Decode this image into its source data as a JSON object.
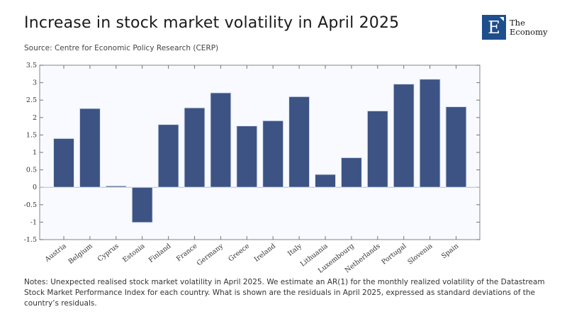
{
  "header": {
    "title": "Increase in stock market volatility in April 2025",
    "source": "Source: Centre for Economic Policy Research (CERP)"
  },
  "logo": {
    "letter": "E",
    "line1": "The",
    "line2": "Economy",
    "color": "#1f4e8c"
  },
  "notes": "Notes: Unexpected realised stock market volatility in April 2025. We estimate an AR(1) for the monthly realized volatility of the Datastream Stock Market Performance Index for each country. What is shown are the residuals in April 2025, expressed as standard deviations of the country’s residuals.",
  "chart_data": {
    "type": "bar",
    "title": "Increase in stock market volatility in April 2025",
    "xlabel": "",
    "ylabel": "",
    "categories": [
      "Austria",
      "Belgium",
      "Cyprus",
      "Estonia",
      "Finland",
      "France",
      "Germany",
      "Greece",
      "Ireland",
      "Italy",
      "Lithuania",
      "Luxembourg",
      "Netherlands",
      "Portugal",
      "Slovenia",
      "Spain"
    ],
    "values": [
      1.4,
      2.26,
      0.04,
      -1.01,
      1.8,
      2.28,
      2.71,
      1.76,
      1.91,
      2.6,
      0.37,
      0.85,
      2.19,
      2.96,
      3.1,
      2.31
    ],
    "ylim": [
      -1.5,
      3.5
    ],
    "yticks": [
      "-1.5",
      "-1",
      "-0.5",
      "0",
      "0.5",
      "1",
      "1.5",
      "2",
      "2.5",
      "3",
      "3.5"
    ],
    "bar_color": "#3c5384",
    "grid": false
  }
}
